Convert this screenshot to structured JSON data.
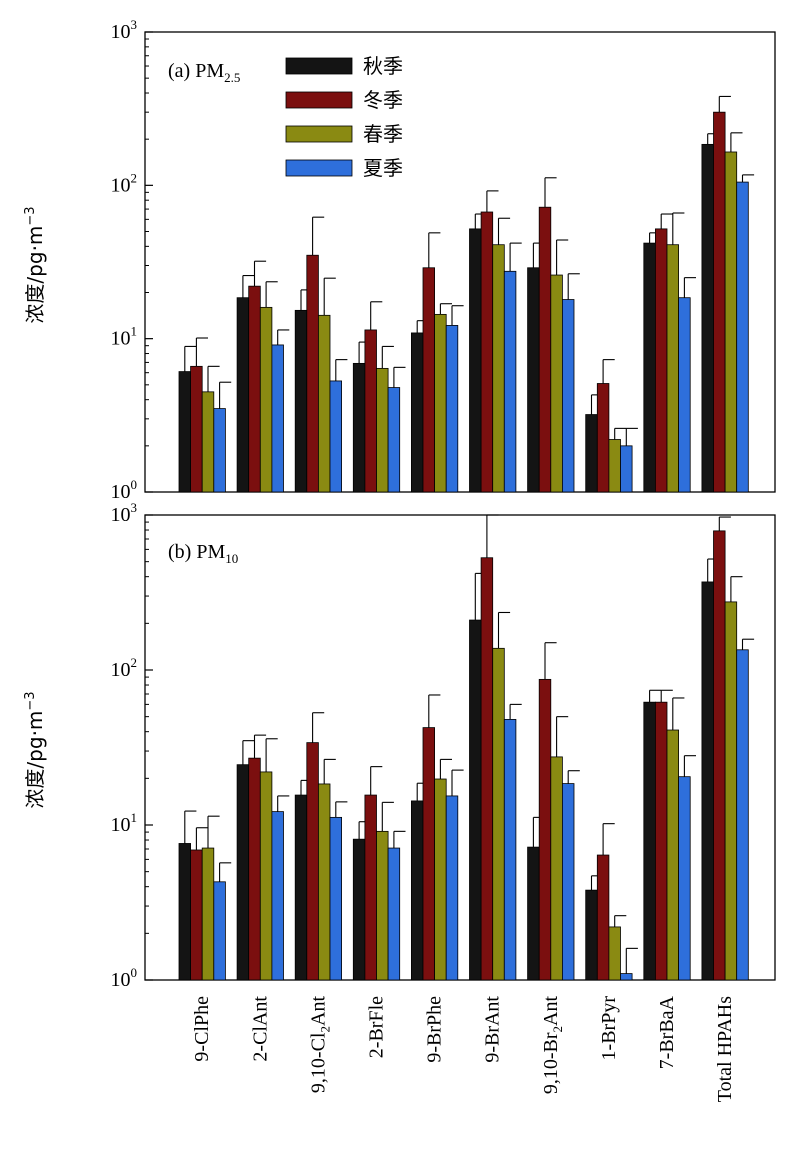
{
  "chart_data": {
    "type": "bar",
    "y_scale": "log",
    "ylim": [
      1,
      1000
    ],
    "y_tick_values": [
      1,
      10,
      100,
      1000
    ],
    "y_tick_labels": [
      {
        "base": "10",
        "exp": "0"
      },
      {
        "base": "10",
        "exp": "1"
      },
      {
        "base": "10",
        "exp": "2"
      },
      {
        "base": "10",
        "exp": "3"
      }
    ],
    "ylabel": {
      "main": "浓度/pg·m",
      "sup": "−3"
    },
    "categories": [
      {
        "pre": "9-ClPhe"
      },
      {
        "pre": "2-ClAnt"
      },
      {
        "pre": "9,10-Cl",
        "sub": "2",
        "post": "Ant"
      },
      {
        "pre": "2-BrFle"
      },
      {
        "pre": "9-BrPhe"
      },
      {
        "pre": "9-BrAnt"
      },
      {
        "pre": "9,10-Br",
        "sub": "2",
        "post": "Ant"
      },
      {
        "pre": "1-BrPyr"
      },
      {
        "pre": "7-BrBaA"
      },
      {
        "pre": "Total HPAHs"
      }
    ],
    "series_names": [
      "秋季",
      "冬季",
      "春季",
      "夏季"
    ],
    "series_colors": [
      "#141414",
      "#7b0f0f",
      "#8a8a12",
      "#2e6fdb"
    ],
    "legend_position": "top-left",
    "panels": [
      {
        "label": {
          "pre": "(a) PM",
          "sub": "2.5"
        },
        "series": [
          {
            "name": "秋季",
            "values": [
              6.1,
              18.5,
              15.3,
              6.9,
              10.9,
              52,
              29,
              3.2,
              42,
              185
            ],
            "errors": [
              8.9,
              25.8,
              20.8,
              9.5,
              13.1,
              65,
              42,
              4.3,
              49,
              217
            ]
          },
          {
            "name": "冬季",
            "values": [
              6.6,
              22,
              35,
              11.4,
              29,
              67,
              72,
              5.1,
              52,
              300
            ],
            "errors": [
              10.1,
              32,
              62,
              17.4,
              49,
              92,
              112,
              7.3,
              65,
              380
            ]
          },
          {
            "name": "春季",
            "values": [
              4.5,
              16,
              14.2,
              6.4,
              14.4,
              41,
              26,
              2.2,
              41,
              165
            ],
            "errors": [
              6.6,
              23.5,
              24.8,
              8.9,
              16.9,
              61,
              44,
              2.6,
              66,
              220
            ]
          },
          {
            "name": "夏季",
            "values": [
              3.5,
              9.1,
              5.3,
              4.8,
              12.2,
              27.5,
              18,
              2.0,
              18.5,
              105
            ],
            "errors": [
              5.2,
              11.4,
              7.3,
              6.5,
              16.4,
              42,
              26.5,
              2.6,
              25,
              117
            ]
          }
        ]
      },
      {
        "label": {
          "pre": "(b) PM",
          "sub": "10"
        },
        "series": [
          {
            "name": "秋季",
            "values": [
              7.6,
              24.5,
              15.6,
              8.1,
              14.3,
              210,
              7.2,
              3.8,
              62,
              370
            ],
            "errors": [
              12.3,
              35,
              19.4,
              10.5,
              18.6,
              420,
              11.2,
              4.7,
              74,
              520
            ]
          },
          {
            "name": "冬季",
            "values": [
              6.9,
              27,
              34,
              15.6,
              42.5,
              530,
              87,
              6.4,
              62,
              790
            ],
            "errors": [
              9.6,
              38,
              53,
              23.8,
              69,
              1000,
              150,
              10.2,
              74,
              970
            ]
          },
          {
            "name": "春季",
            "values": [
              7.1,
              22,
              18.4,
              9.1,
              19.8,
              138,
              27.5,
              2.2,
              41,
              275
            ],
            "errors": [
              11.4,
              36,
              26.5,
              14,
              26.5,
              235,
              50,
              2.6,
              66,
              400
            ]
          },
          {
            "name": "夏季",
            "values": [
              4.3,
              12.2,
              11.2,
              7.1,
              15.4,
              48,
              18.5,
              1.1,
              20.5,
              135
            ],
            "errors": [
              5.7,
              15.4,
              14.1,
              9.1,
              22.6,
              60,
              22.4,
              1.6,
              28,
              158
            ]
          }
        ]
      }
    ]
  }
}
